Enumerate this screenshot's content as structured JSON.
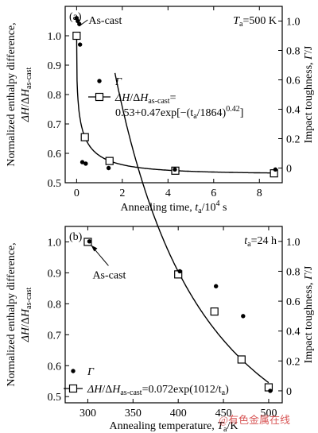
{
  "figure": {
    "watermark": "@有色金属在线"
  },
  "chart_data": [
    {
      "type": "scatter",
      "panel_label": "(a)",
      "condition": "Tₐ=500 K",
      "xlabel": "Annealing time, tₐ/10⁴ s",
      "ylabel_left": "Normalized enthalpy difference, ΔH/ΔHₐₛ₋ₑₐₛₜ",
      "ylabel_left_line1": "Normalized enthalpy difference,",
      "ylabel_left_line2": "ΔH/ΔH",
      "ylabel_left_sub": "as-cast",
      "ylabel_right": "Impact toughness, Γ/J",
      "annotation": "As-cast",
      "xlim": [
        -0.5,
        9
      ],
      "xticks": [
        0,
        2,
        4,
        6,
        8
      ],
      "ylim_left": [
        0.5,
        1.1
      ],
      "yticks_left": [
        0.5,
        0.6,
        0.7,
        0.8,
        0.9,
        1.0
      ],
      "ylim_right": [
        -0.1,
        1.1
      ],
      "yticks_right": [
        0,
        0.2,
        0.4,
        0.6,
        0.8,
        1.0
      ],
      "series": [
        {
          "name": "Γ",
          "marker": "filled-circle",
          "axis": "right",
          "x": [
            0,
            0.05,
            0.12,
            0.15,
            0.25,
            0.4,
            1.4,
            4.3,
            8.7
          ],
          "y": [
            1.02,
            1.0,
            0.98,
            0.84,
            0.04,
            0.03,
            0.0,
            -0.01,
            -0.01
          ]
        },
        {
          "name": "ΔH/ΔHₐₛ₋ₑₐₛₜ",
          "marker": "open-square",
          "axis": "left",
          "x": [
            0,
            0.36,
            1.44,
            4.32,
            8.64
          ],
          "y": [
            1.0,
            0.655,
            0.574,
            0.541,
            0.532
          ]
        }
      ],
      "fit": {
        "label_line1_prefix": "ΔH/ΔH",
        "label_line1_sub": "as-cast",
        "label_line1_suffix": "=",
        "label_line2": "0.53+0.47exp[−(tₐ/1864)⁰˙⁴²]",
        "label_line2_main": "0.53+0.47exp[−(t",
        "label_line2_sub": "a",
        "label_line2_mid": "/1864)",
        "label_line2_sup": "0.42",
        "label_line2_end": "]",
        "gamma_label": "Γ"
      }
    },
    {
      "type": "scatter",
      "panel_label": "(b)",
      "condition": "tₐ=24 h",
      "xlabel": "Annealing temperature, Tₐ/K",
      "ylabel_left": "Normalized enthalpy difference, ΔH/ΔHₐₛ₋ₑₐₛₜ",
      "ylabel_left_line1": "Normalized enthalpy difference,",
      "ylabel_left_line2": "ΔH/ΔH",
      "ylabel_left_sub": "as-cast",
      "ylabel_right": "Impact toughness, Γ/J",
      "annotation": "As-cast",
      "xlim": [
        275,
        515
      ],
      "xticks": [
        300,
        350,
        400,
        450,
        500
      ],
      "ylim_left": [
        0.48,
        1.05
      ],
      "yticks_left": [
        0.5,
        0.6,
        0.7,
        0.8,
        0.9,
        1.0
      ],
      "ylim_right": [
        -0.08,
        1.1
      ],
      "yticks_right": [
        0,
        0.2,
        0.4,
        0.6,
        0.8,
        1.0
      ],
      "series": [
        {
          "name": "Γ",
          "marker": "filled-circle",
          "axis": "right",
          "x": [
            300,
            400,
            440,
            470,
            500
          ],
          "y": [
            1.0,
            0.8,
            0.7,
            0.5,
            0.0
          ]
        },
        {
          "name": "ΔH/ΔHₐₛ₋ₑₐₛₜ",
          "marker": "open-square",
          "axis": "left",
          "x": [
            300,
            400,
            440,
            470,
            500
          ],
          "y": [
            1.0,
            0.895,
            0.775,
            0.62,
            0.53
          ]
        }
      ],
      "fit": {
        "label_prefix": "ΔH/ΔH",
        "label_sub": "as-cast",
        "label_main": "=0.072exp(1012/t",
        "label_sub2": "a",
        "label_end": ")",
        "gamma_label": "Γ"
      }
    }
  ]
}
